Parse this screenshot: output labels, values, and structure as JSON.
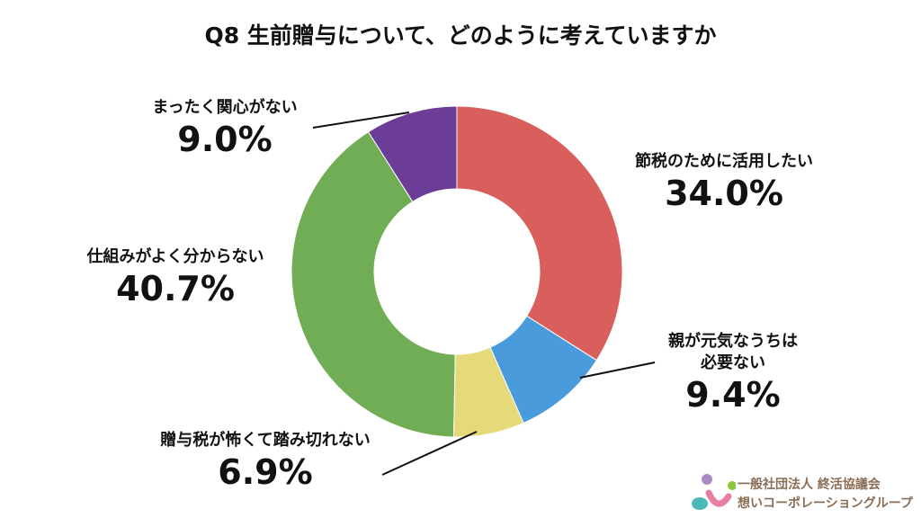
{
  "chart_data": {
    "type": "pie",
    "donut": true,
    "title": "Q8 生前贈与について、どのように考えていますか",
    "slices": [
      {
        "label": "節税のために活用したい",
        "value": 34.0,
        "display": "34.0%",
        "color": "#d95f5c"
      },
      {
        "label": "親が元気なうちは必要ない",
        "label_lines": [
          "親が元気なうちは",
          "必要ない"
        ],
        "value": 9.4,
        "display": "9.4%",
        "color": "#4a9bdc"
      },
      {
        "label": "贈与税が怖くて踏み切れない",
        "value": 6.9,
        "display": "6.9%",
        "color": "#e5d97a"
      },
      {
        "label": "仕組みがよく分からない",
        "value": 40.7,
        "display": "40.7%",
        "color": "#70ad55"
      },
      {
        "label": "まったく関心がない",
        "value": 9.0,
        "display": "9.0%",
        "color": "#6b3d96"
      }
    ],
    "start": "top",
    "direction": "clockwise"
  },
  "logo": {
    "line1": "一般社団法人 終活協議会",
    "line2": "想いコーポレーショングループ"
  }
}
